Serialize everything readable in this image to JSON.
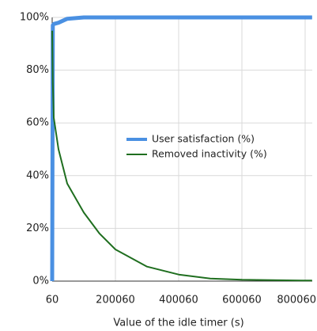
{
  "chart_data": {
    "type": "line",
    "x_label": "Value of the idle timer (s)",
    "x": [
      60,
      2000,
      5000,
      20000,
      47500,
      100000,
      150000,
      200060,
      300060,
      400060,
      500060,
      600060,
      800060,
      822000
    ],
    "series": [
      {
        "name": "User satisfaction (%)",
        "color": "#4a90e2",
        "values": [
          0,
          97,
          97.5,
          98,
          99.5,
          100,
          100,
          100,
          100,
          100,
          100,
          100,
          100,
          100
        ]
      },
      {
        "name": "Removed inactivity (%)",
        "color": "#1f6e1f",
        "values": [
          95,
          75,
          62,
          50,
          37,
          26,
          18,
          12,
          5.5,
          2.5,
          1,
          0.5,
          0.2,
          0.2
        ]
      }
    ],
    "xlim": [
      60,
      822560
    ],
    "xticks": [
      60,
      200060,
      400060,
      600060,
      800060
    ],
    "ylim": [
      0,
      100
    ],
    "yticks": [
      {
        "value": 0,
        "label": "0%"
      },
      {
        "value": 20,
        "label": "20%"
      },
      {
        "value": 40,
        "label": "40%"
      },
      {
        "value": 60,
        "label": "60%"
      },
      {
        "value": 80,
        "label": "80%"
      },
      {
        "value": 100,
        "label": "100%"
      }
    ],
    "grid": true,
    "legend": "center-right"
  }
}
